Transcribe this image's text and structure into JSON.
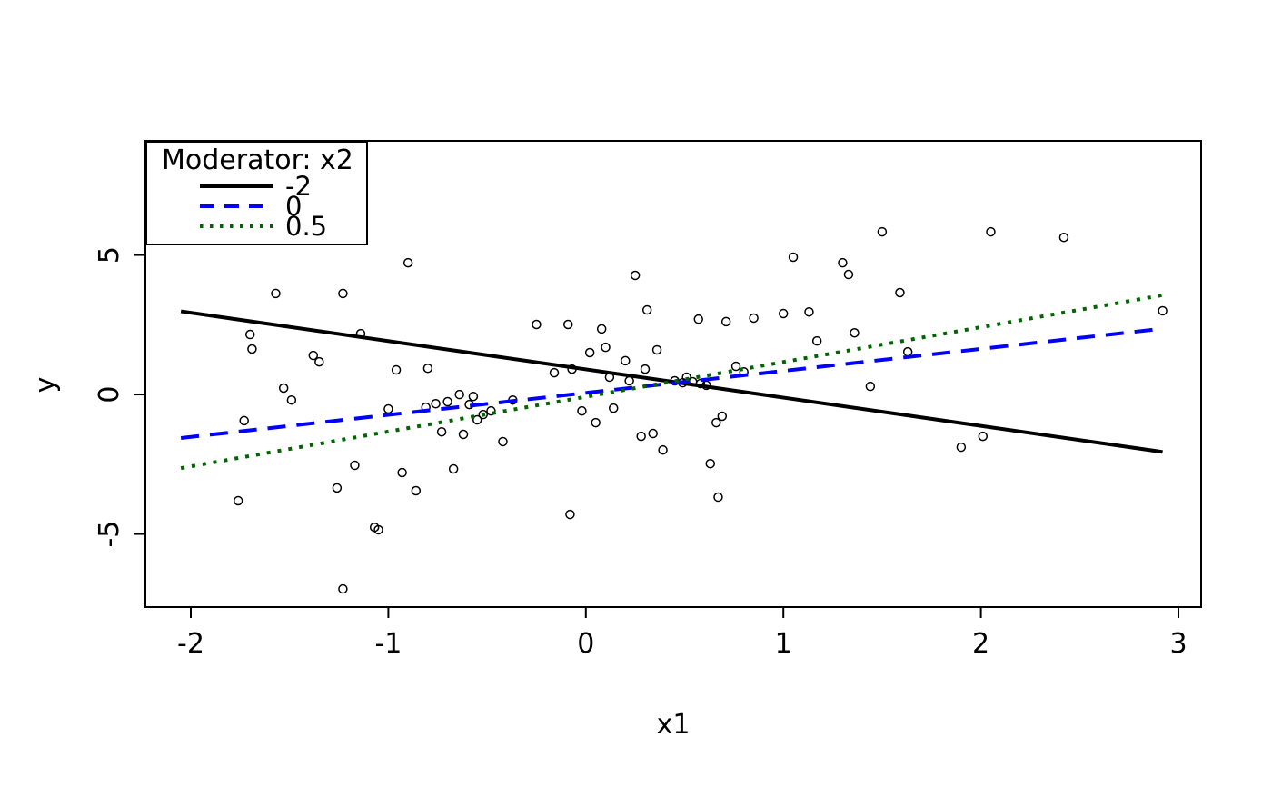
{
  "figure": {
    "background": "#ffffff",
    "border_color": "#000000"
  },
  "chart_data": {
    "type": "scatter",
    "title": "",
    "xlabel": "x1",
    "ylabel": "y",
    "grid": false,
    "xlim": [
      -2.23,
      3.115
    ],
    "ylim": [
      -7.62,
      9.09
    ],
    "x_ticks": [
      -2,
      -1,
      0,
      1,
      2,
      3
    ],
    "y_ticks": [
      -5,
      0,
      5
    ],
    "point_style": "open-circle",
    "points": [
      [
        -1.76,
        -3.81
      ],
      [
        -1.7,
        2.15
      ],
      [
        -1.69,
        1.63
      ],
      [
        -1.73,
        -0.94
      ],
      [
        -1.57,
        3.62
      ],
      [
        -1.53,
        0.23
      ],
      [
        -1.49,
        -0.2
      ],
      [
        -1.38,
        1.4
      ],
      [
        -1.35,
        1.17
      ],
      [
        -1.26,
        -3.35
      ],
      [
        -1.23,
        -6.97
      ],
      [
        -1.23,
        3.62
      ],
      [
        -1.17,
        -2.54
      ],
      [
        -1.14,
        2.18
      ],
      [
        -1.07,
        -4.76
      ],
      [
        -1.05,
        -4.85
      ],
      [
        -1.0,
        -0.52
      ],
      [
        -0.96,
        0.88
      ],
      [
        -0.93,
        -2.8
      ],
      [
        -0.9,
        4.72
      ],
      [
        -0.86,
        -3.45
      ],
      [
        -0.81,
        -0.46
      ],
      [
        -0.8,
        0.94
      ],
      [
        -0.76,
        -0.33
      ],
      [
        -0.73,
        -1.34
      ],
      [
        -0.7,
        -0.26
      ],
      [
        -0.67,
        -2.67
      ],
      [
        -0.64,
        0.0
      ],
      [
        -0.62,
        -1.43
      ],
      [
        -0.59,
        -0.36
      ],
      [
        -0.57,
        -0.07
      ],
      [
        -0.55,
        -0.91
      ],
      [
        -0.52,
        -0.72
      ],
      [
        -0.48,
        -0.59
      ],
      [
        -0.42,
        -1.69
      ],
      [
        -0.37,
        -0.2
      ],
      [
        -0.25,
        2.51
      ],
      [
        -0.16,
        0.78
      ],
      [
        -0.09,
        2.51
      ],
      [
        -0.07,
        0.91
      ],
      [
        -0.08,
        -4.3
      ],
      [
        -0.02,
        -0.59
      ],
      [
        0.02,
        1.5
      ],
      [
        0.05,
        -1.01
      ],
      [
        0.08,
        2.35
      ],
      [
        0.1,
        1.69
      ],
      [
        0.12,
        0.62
      ],
      [
        0.14,
        -0.49
      ],
      [
        0.2,
        1.21
      ],
      [
        0.22,
        0.49
      ],
      [
        0.25,
        4.27
      ],
      [
        0.28,
        -1.5
      ],
      [
        0.3,
        0.91
      ],
      [
        0.31,
        3.03
      ],
      [
        0.34,
        -1.4
      ],
      [
        0.36,
        1.6
      ],
      [
        0.39,
        -1.99
      ],
      [
        0.45,
        0.49
      ],
      [
        0.49,
        0.42
      ],
      [
        0.51,
        0.62
      ],
      [
        0.54,
        0.46
      ],
      [
        0.57,
        2.7
      ],
      [
        0.58,
        0.39
      ],
      [
        0.61,
        0.33
      ],
      [
        0.63,
        -2.48
      ],
      [
        0.66,
        -1.01
      ],
      [
        0.67,
        -3.68
      ],
      [
        0.69,
        -0.78
      ],
      [
        0.71,
        2.61
      ],
      [
        0.76,
        1.01
      ],
      [
        0.8,
        0.81
      ],
      [
        0.85,
        2.74
      ],
      [
        1.0,
        2.9
      ],
      [
        1.05,
        4.92
      ],
      [
        1.13,
        2.96
      ],
      [
        1.17,
        1.92
      ],
      [
        1.3,
        4.72
      ],
      [
        1.33,
        4.3
      ],
      [
        1.36,
        2.21
      ],
      [
        1.44,
        0.29
      ],
      [
        1.5,
        5.83
      ],
      [
        1.59,
        3.65
      ],
      [
        1.63,
        1.53
      ],
      [
        1.9,
        -1.89
      ],
      [
        2.01,
        -1.5
      ],
      [
        2.05,
        5.83
      ],
      [
        2.42,
        5.63
      ],
      [
        2.92,
        3.0
      ]
    ],
    "lines": [
      {
        "name": "-2",
        "style": "solid",
        "color": "#000000",
        "x1": -2.05,
        "y1": 2.98,
        "x2": 2.92,
        "y2": -2.06
      },
      {
        "name": "0",
        "style": "dashed",
        "color": "#0000ff",
        "x1": -2.05,
        "y1": -1.56,
        "x2": 2.92,
        "y2": 2.36
      },
      {
        "name": "0.5",
        "style": "dotted",
        "color": "#006400",
        "x1": -2.05,
        "y1": -2.64,
        "x2": 2.92,
        "y2": 3.56
      }
    ],
    "legend": {
      "title": "Moderator: x2",
      "position": "topleft",
      "entries": [
        {
          "label": "-2",
          "style": "solid",
          "color": "#000000"
        },
        {
          "label": "0",
          "style": "dashed",
          "color": "#0000ff"
        },
        {
          "label": "0.5",
          "style": "dotted",
          "color": "#006400"
        }
      ]
    }
  }
}
